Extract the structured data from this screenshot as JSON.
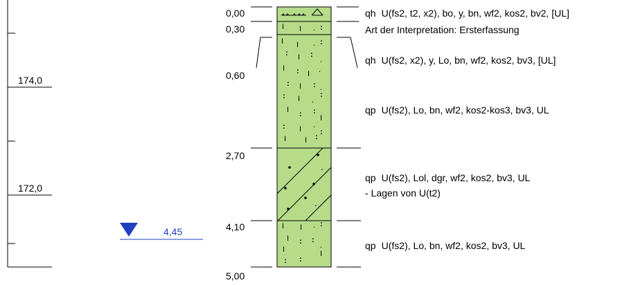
{
  "scale": {
    "label_upper": "174,0",
    "label_lower": "172,0"
  },
  "water_level": {
    "value": "4,45",
    "color": "#1f3fbf"
  },
  "depths": [
    "0,00",
    "0,30",
    "0,60",
    "2,70",
    "4,10",
    "5,00"
  ],
  "layers": [
    {
      "code": "qh",
      "description": "U(fs2, t2, x2), bo, y, bn, wf2, kos2, bv2, [UL]"
    },
    {
      "code": "",
      "description": "Art der Interpretation: Ersterfassung"
    },
    {
      "code": "qh",
      "description": "U(fs2, x2), y, Lo, bn, wf2, kos2, bv3, [UL]"
    },
    {
      "code": "qp",
      "description": "U(fs2), Lo, bn, wf2, kos2-kos3, bv3, UL"
    },
    {
      "code": "qp",
      "description": "U(fs2), Lol, dgr, wf2, kos2, bv3, UL"
    },
    {
      "code": "",
      "description": "- Lagen von U(t2)"
    },
    {
      "code": "qp",
      "description": "U(fs2), Lo, bn, wf2, kos2, bv3, UL"
    }
  ],
  "colors": {
    "column_fill": "#b6dc8a",
    "line": "#000000"
  }
}
